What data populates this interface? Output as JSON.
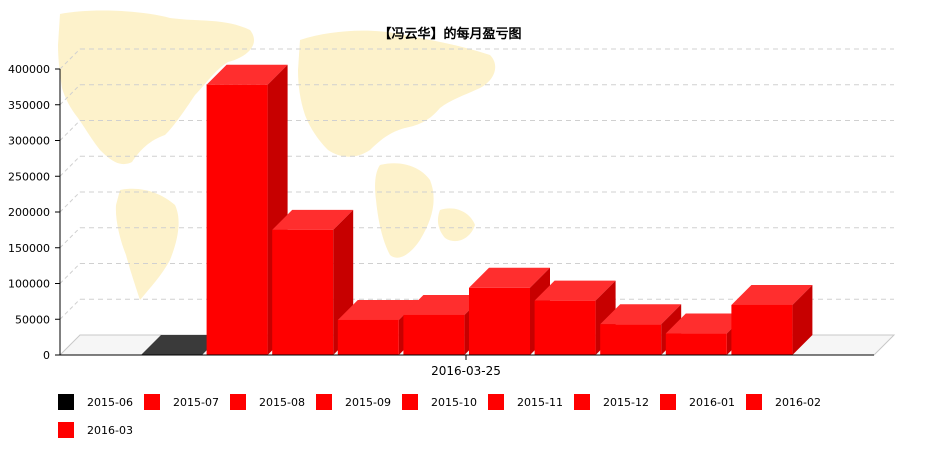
{
  "chart_data": {
    "type": "bar",
    "title": "【冯云华】的每月盈亏图",
    "xlabel": "2016-03-25",
    "ylabel": "",
    "ylim": [
      0,
      400000
    ],
    "yticks": [
      "0",
      "50000",
      "100000",
      "150000",
      "200000",
      "250000",
      "300000",
      "350000",
      "400000"
    ],
    "grid": true,
    "legend_position": "bottom",
    "three_d": true,
    "series": [
      {
        "name": "2015-06",
        "value": 0,
        "color": "#000000"
      },
      {
        "name": "2015-07",
        "value": 378000,
        "color": "#ff0000"
      },
      {
        "name": "2015-08",
        "value": 175000,
        "color": "#ff0000"
      },
      {
        "name": "2015-09",
        "value": 49000,
        "color": "#ff0000"
      },
      {
        "name": "2015-10",
        "value": 56000,
        "color": "#ff0000"
      },
      {
        "name": "2015-11",
        "value": 94000,
        "color": "#ff0000"
      },
      {
        "name": "2015-12",
        "value": 76000,
        "color": "#ff0000"
      },
      {
        "name": "2016-01",
        "value": 43000,
        "color": "#ff0000"
      },
      {
        "name": "2016-02",
        "value": 30000,
        "color": "#ff0000"
      },
      {
        "name": "2016-03",
        "value": 70000,
        "color": "#ff0000"
      }
    ]
  }
}
